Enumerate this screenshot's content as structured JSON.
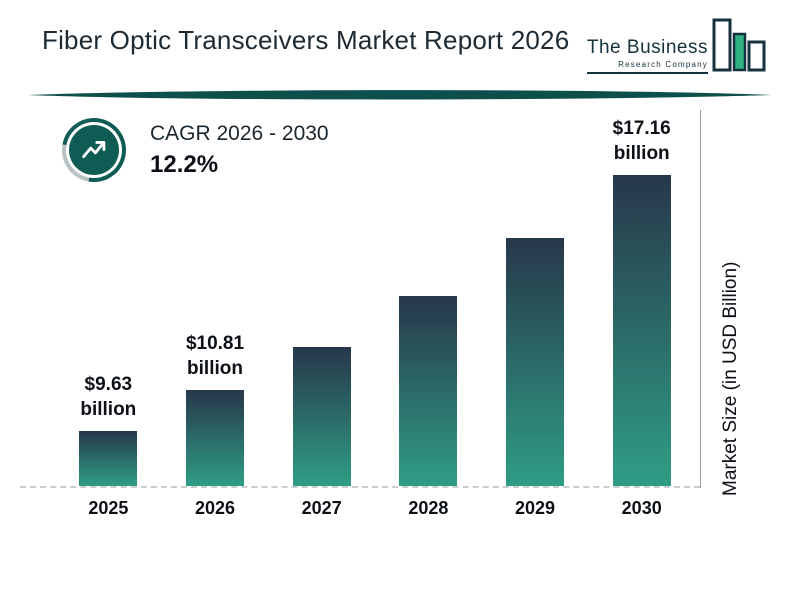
{
  "header": {
    "title": "Fiber Optic Transceivers Market Report 2026"
  },
  "logo": {
    "line1": "The Business",
    "line2": "Research Company"
  },
  "cagr": {
    "label": "CAGR 2026 - 2030",
    "value": "12.2%"
  },
  "chart_data": {
    "type": "bar",
    "title": "Fiber Optic Transceivers Market Report 2026",
    "categories": [
      "2025",
      "2026",
      "2027",
      "2028",
      "2029",
      "2030"
    ],
    "values": [
      9.63,
      10.81,
      12.1,
      13.6,
      15.3,
      17.16
    ],
    "bar_labels": [
      "$9.63 billion",
      "$10.81 billion",
      null,
      null,
      null,
      "$17.16 billion"
    ],
    "xlabel": "",
    "ylabel": "Market Size (in USD Billion)",
    "ylim": [
      8,
      18
    ],
    "grid": false,
    "legend": "none",
    "colors": {
      "bar_top": "#27374a",
      "bar_bottom": "#2f9d85",
      "accent_teal": "#0f5c55",
      "divider": "#0d4f4b",
      "logo_bar_fill": "#2fb181",
      "logo_outline": "#16323e"
    }
  }
}
